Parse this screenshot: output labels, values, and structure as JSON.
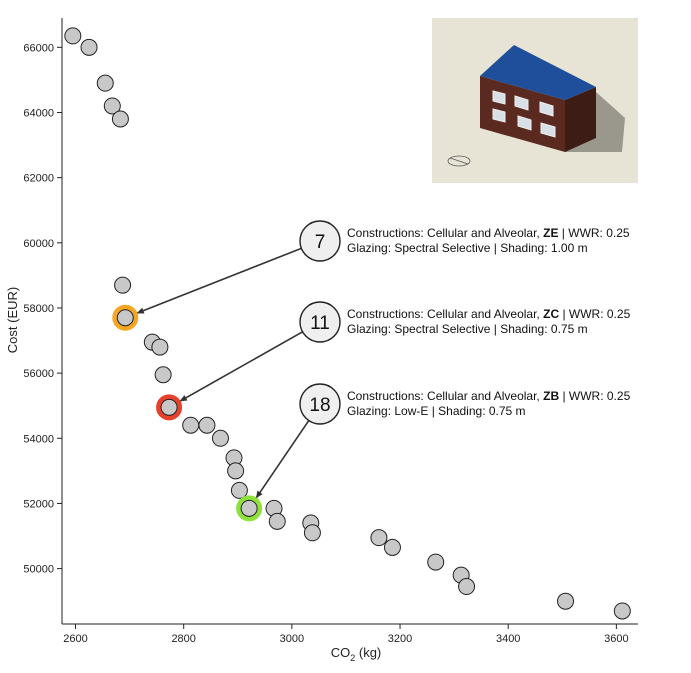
{
  "chart_data": {
    "type": "scatter",
    "xlabel_main": "CO",
    "xlabel_sub": "2",
    "xlabel_unit": " (kg)",
    "ylabel": "Cost (EUR)",
    "xlim": [
      2575,
      3640
    ],
    "ylim": [
      48300,
      66900
    ],
    "xticks": [
      2600,
      2800,
      3000,
      3200,
      3400,
      3600
    ],
    "yticks": [
      50000,
      52000,
      54000,
      56000,
      58000,
      60000,
      62000,
      64000,
      66000
    ],
    "grid": false,
    "points": [
      {
        "x": 2595,
        "y": 66350
      },
      {
        "x": 2625,
        "y": 66000
      },
      {
        "x": 2655,
        "y": 64900
      },
      {
        "x": 2668,
        "y": 64200
      },
      {
        "x": 2683,
        "y": 63800
      },
      {
        "x": 2687,
        "y": 58700
      },
      {
        "x": 2692,
        "y": 57700,
        "highlight": "#f5a623"
      },
      {
        "x": 2742,
        "y": 56950
      },
      {
        "x": 2756,
        "y": 56800
      },
      {
        "x": 2762,
        "y": 55950
      },
      {
        "x": 2773,
        "y": 54950,
        "highlight": "#e8402a"
      },
      {
        "x": 2813,
        "y": 54400
      },
      {
        "x": 2843,
        "y": 54400
      },
      {
        "x": 2868,
        "y": 54000
      },
      {
        "x": 2893,
        "y": 53400
      },
      {
        "x": 2896,
        "y": 53000
      },
      {
        "x": 2903,
        "y": 52400
      },
      {
        "x": 2921,
        "y": 51850,
        "highlight": "#8ee03a"
      },
      {
        "x": 2967,
        "y": 51850
      },
      {
        "x": 2973,
        "y": 51450
      },
      {
        "x": 3035,
        "y": 51400
      },
      {
        "x": 3038,
        "y": 51100
      },
      {
        "x": 3161,
        "y": 50950
      },
      {
        "x": 3186,
        "y": 50650
      },
      {
        "x": 3266,
        "y": 50200
      },
      {
        "x": 3313,
        "y": 49800
      },
      {
        "x": 3323,
        "y": 49450
      },
      {
        "x": 3506,
        "y": 49000
      },
      {
        "x": 3611,
        "y": 48700
      }
    ],
    "annotations": [
      {
        "number": "7",
        "line1_pre": "Constructions: Cellular and Alveolar, ",
        "line1_bold": "ZE",
        "line1_post": " | WWR: 0.25",
        "line2": "Glazing: Spectral Selective | Shading: 1.00 m",
        "target_x": 2692,
        "target_y": 57700
      },
      {
        "number": "11",
        "line1_pre": "Constructions: Cellular and Alveolar, ",
        "line1_bold": "ZC",
        "line1_post": " | WWR: 0.25",
        "line2": "Glazing: Spectral Selective | Shading: 0.75 m",
        "target_x": 2773,
        "target_y": 54950
      },
      {
        "number": "18",
        "line1_pre": "Constructions: Cellular and Alveolar, ",
        "line1_bold": "ZB",
        "line1_post": " | WWR: 0.25",
        "line2": "Glazing: Low-E | Shading: 0.75 m",
        "target_x": 2921,
        "target_y": 51850
      }
    ],
    "colors": {
      "point_fill": "#c8c8c8",
      "point_stroke": "#222222",
      "inset_bg": "#e7e4d6",
      "roof": "#1f4e9a",
      "walls": "#5a2a20"
    },
    "inset": "building-3d-model-render"
  }
}
